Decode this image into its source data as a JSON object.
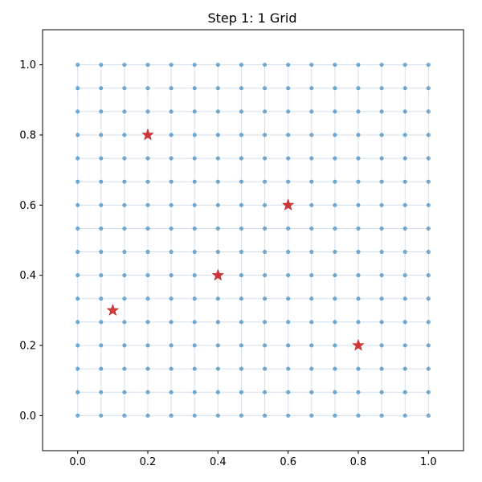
{
  "chart_data": {
    "type": "scatter",
    "title": "Step 1: 1 Grid",
    "xlabel": "",
    "ylabel": "",
    "xlim": [
      -0.1,
      1.1
    ],
    "ylim": [
      -0.1,
      1.1
    ],
    "grid": false,
    "x_ticks": [
      0.0,
      0.2,
      0.4,
      0.6,
      0.8,
      1.0
    ],
    "x_tick_labels": [
      "0.0",
      "0.2",
      "0.4",
      "0.6",
      "0.8",
      "1.0"
    ],
    "y_ticks": [
      0.0,
      0.2,
      0.4,
      0.6,
      0.8,
      1.0
    ],
    "y_tick_labels": [
      "0.0",
      "0.2",
      "0.4",
      "0.6",
      "0.8",
      "1.0"
    ],
    "series": [
      {
        "marker": "dot",
        "color": "#1f77b4",
        "grid_points": {
          "x_min": 0.0,
          "x_max": 1.0,
          "y_min": 0.0,
          "y_max": 1.0,
          "per_side": 16
        }
      },
      {
        "marker": "star",
        "color": "#d62728",
        "x": [
          0.1,
          0.2,
          0.4,
          0.6,
          0.8
        ],
        "y": [
          0.3,
          0.8,
          0.4,
          0.6,
          0.2
        ]
      }
    ],
    "grid_line_color": "#b0c4de"
  }
}
